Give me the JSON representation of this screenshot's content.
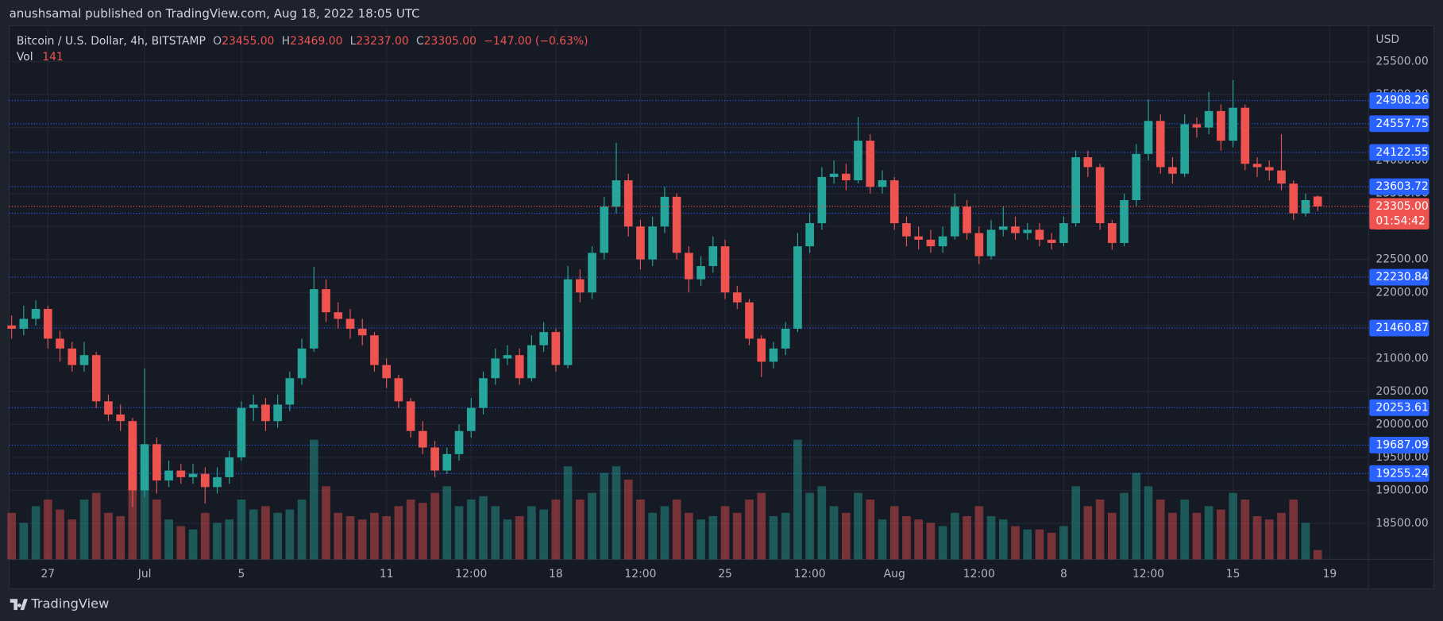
{
  "header": {
    "publisher": "anushsamal published on TradingView.com, Aug 18, 2022 18:05 UTC"
  },
  "footer": {
    "brand": "TradingView"
  },
  "chart_data": {
    "type": "candlestick",
    "title": "Bitcoin / U.S. Dollar, 4h, BITSTAMP",
    "legend": [
      {
        "key": "O",
        "label": "23455.00"
      },
      {
        "key": "H",
        "label": "23469.00"
      },
      {
        "key": "L",
        "label": "23237.00"
      },
      {
        "key": "C",
        "label": "23305.00"
      }
    ],
    "change": "−147.00 (−0.63%)",
    "volume_name": "Vol",
    "currency": "USD",
    "last_price_label": "23305.00",
    "countdown": "01:54:42",
    "up_color": "#26a69a",
    "down_color": "#ef5350",
    "level_color": "#2962ff",
    "grid": true,
    "xlim": [
      -5.6,
      50.6
    ],
    "ylim": [
      17954,
      26015
    ],
    "vlim": [
      0,
      8000
    ],
    "xticks": [
      {
        "value": -4,
        "label": "27"
      },
      {
        "value": 0,
        "label": "Jul"
      },
      {
        "value": 4,
        "label": "5"
      },
      {
        "value": 10,
        "label": "11"
      },
      {
        "value": 13.5,
        "label": "12:00"
      },
      {
        "value": 17,
        "label": "18"
      },
      {
        "value": 20.5,
        "label": "12:00"
      },
      {
        "value": 24,
        "label": "25"
      },
      {
        "value": 27.5,
        "label": "12:00"
      },
      {
        "value": 31,
        "label": "Aug"
      },
      {
        "value": 34.5,
        "label": "12:00"
      },
      {
        "value": 38,
        "label": "8"
      },
      {
        "value": 41.5,
        "label": "12:00"
      },
      {
        "value": 45,
        "label": "15"
      },
      {
        "value": 49,
        "label": "19"
      }
    ],
    "yticks": [
      {
        "value": 18500,
        "label": "18500.00"
      },
      {
        "value": 19000,
        "label": "19000.00"
      },
      {
        "value": 19500,
        "label": "19500.00"
      },
      {
        "value": 20000,
        "label": "20000.00"
      },
      {
        "value": 20500,
        "label": "20500.00"
      },
      {
        "value": 21000,
        "label": "21000.00"
      },
      {
        "value": 21500,
        "label": "21500.00"
      },
      {
        "value": 22000,
        "label": "22000.00"
      },
      {
        "value": 22500,
        "label": "22500.00"
      },
      {
        "value": 23000,
        "label": "23000.00"
      },
      {
        "value": 23500,
        "label": "23500.00"
      },
      {
        "value": 24000,
        "label": "24000.00"
      },
      {
        "value": 24500,
        "label": "24500.00"
      },
      {
        "value": 25000,
        "label": "25000.00"
      },
      {
        "value": 25500,
        "label": "25500.00"
      }
    ],
    "levels": [
      24908.26,
      24557.75,
      24122.55,
      23603.72,
      23199.88,
      22230.84,
      21460.87,
      20253.61,
      19687.09,
      19255.24
    ],
    "x": [
      -5.5,
      -5,
      -4.5,
      -4,
      -3.5,
      -3,
      -2.5,
      -2,
      -1.5,
      -1,
      -0.5,
      0,
      0.5,
      1,
      1.5,
      2,
      2.5,
      3,
      3.5,
      4,
      4.5,
      5,
      5.5,
      6,
      6.5,
      7,
      7.5,
      8,
      8.5,
      9,
      9.5,
      10,
      10.5,
      11,
      11.5,
      12,
      12.5,
      13,
      13.5,
      14,
      14.5,
      15,
      15.5,
      16,
      16.5,
      17,
      17.5,
      18,
      18.5,
      19,
      19.5,
      20,
      20.5,
      21,
      21.5,
      22,
      22.5,
      23,
      23.5,
      24,
      24.5,
      25,
      25.5,
      26,
      26.5,
      27,
      27.5,
      28,
      28.5,
      29,
      29.5,
      30,
      30.5,
      31,
      31.5,
      32,
      32.5,
      33,
      33.5,
      34,
      34.5,
      35,
      35.5,
      36,
      36.5,
      37,
      37.5,
      38,
      38.5,
      39,
      39.5,
      40,
      40.5,
      41,
      41.5,
      42,
      42.5,
      43,
      43.5,
      44,
      44.5,
      45,
      45.5,
      46,
      46.5,
      47,
      47.5,
      48,
      48.5
    ],
    "open": [
      21500,
      21450,
      21600,
      21750,
      21300,
      21150,
      20900,
      21050,
      20350,
      20150,
      20050,
      19000,
      19700,
      19150,
      19300,
      19200,
      19250,
      19050,
      19200,
      19500,
      20250,
      20300,
      20050,
      20300,
      20700,
      21150,
      22050,
      21700,
      21600,
      21450,
      21350,
      20900,
      20700,
      20350,
      19900,
      19650,
      19300,
      19550,
      19900,
      20250,
      20700,
      21000,
      21050,
      20700,
      21200,
      21400,
      20900,
      22200,
      22000,
      22600,
      23300,
      23700,
      23000,
      22500,
      23000,
      23450,
      22600,
      22200,
      22400,
      22700,
      22000,
      21850,
      21300,
      20950,
      21150,
      21450,
      22700,
      23050,
      23750,
      23800,
      23700,
      24300,
      23600,
      23700,
      23050,
      22850,
      22800,
      22700,
      22850,
      23300,
      22900,
      22550,
      22950,
      23000,
      22900,
      22950,
      22800,
      22750,
      23050,
      24050,
      23900,
      23050,
      22750,
      23400,
      24100,
      24600,
      23900,
      23800,
      24550,
      24500,
      24750,
      24300,
      24800,
      23950,
      23900,
      23850,
      23650,
      23200,
      23455
    ],
    "high": [
      21650,
      21800,
      21880,
      21800,
      21420,
      21250,
      21250,
      21100,
      20450,
      20300,
      20100,
      20850,
      19800,
      19450,
      19400,
      19400,
      19350,
      19350,
      19600,
      20350,
      20450,
      20400,
      20450,
      20800,
      21300,
      22390,
      22200,
      21850,
      21750,
      21600,
      21400,
      21000,
      20750,
      20400,
      20050,
      19750,
      19650,
      20000,
      20400,
      20800,
      21150,
      21200,
      21150,
      21350,
      21550,
      21450,
      22400,
      22350,
      22700,
      23450,
      24270,
      23800,
      23100,
      23150,
      23600,
      23500,
      22700,
      22550,
      22850,
      22800,
      22100,
      21900,
      21350,
      21250,
      21550,
      22900,
      23200,
      23900,
      24000,
      23950,
      24660,
      24400,
      23850,
      23750,
      23150,
      23000,
      22950,
      23000,
      23500,
      23400,
      23000,
      23100,
      23300,
      23150,
      23050,
      23050,
      22900,
      23150,
      24150,
      24150,
      23950,
      23100,
      23500,
      24250,
      24930,
      24700,
      24050,
      24700,
      24650,
      25040,
      24850,
      25220,
      24850,
      24050,
      24000,
      24400,
      23700,
      23500,
      23469
    ],
    "low": [
      21300,
      21350,
      21500,
      21150,
      20950,
      20800,
      20800,
      20250,
      20050,
      19900,
      18750,
      18900,
      18950,
      19050,
      19100,
      19100,
      18800,
      18950,
      19100,
      19450,
      20050,
      19900,
      19950,
      20200,
      20600,
      21100,
      21550,
      21450,
      21300,
      21200,
      20800,
      20550,
      20250,
      19800,
      19550,
      19200,
      19250,
      19450,
      19800,
      20150,
      20600,
      20900,
      20600,
      20650,
      21100,
      20800,
      20850,
      21850,
      21900,
      22500,
      23200,
      22850,
      22350,
      22400,
      22900,
      22500,
      22000,
      22100,
      22300,
      21900,
      21750,
      21200,
      20720,
      20850,
      21050,
      21400,
      22600,
      22950,
      23650,
      23550,
      23650,
      23500,
      23500,
      22950,
      22700,
      22650,
      22600,
      22600,
      22800,
      22800,
      22430,
      22500,
      22850,
      22800,
      22800,
      22700,
      22650,
      22700,
      23000,
      23750,
      22950,
      22650,
      22700,
      23300,
      24000,
      23800,
      23650,
      23750,
      24350,
      24400,
      24150,
      24200,
      23850,
      23750,
      23700,
      23550,
      23100,
      23150,
      23237
    ],
    "close": [
      21450,
      21600,
      21750,
      21300,
      21150,
      20900,
      21050,
      20350,
      20150,
      20050,
      19000,
      19700,
      19150,
      19300,
      19200,
      19250,
      19050,
      19200,
      19500,
      20250,
      20300,
      20050,
      20300,
      20700,
      21150,
      22050,
      21700,
      21600,
      21450,
      21350,
      20900,
      20700,
      20350,
      19900,
      19650,
      19300,
      19550,
      19900,
      20250,
      20700,
      21000,
      21050,
      20700,
      21200,
      21400,
      20900,
      22200,
      22000,
      22600,
      23300,
      23700,
      23000,
      22500,
      23000,
      23450,
      22600,
      22200,
      22400,
      22700,
      22000,
      21850,
      21300,
      20950,
      21150,
      21450,
      22700,
      23050,
      23750,
      23800,
      23700,
      24300,
      23600,
      23700,
      23050,
      22850,
      22800,
      22700,
      22850,
      23300,
      22900,
      22550,
      22950,
      23000,
      22900,
      22950,
      22800,
      22750,
      23050,
      24050,
      23900,
      23050,
      22750,
      23400,
      24100,
      24600,
      23900,
      23800,
      24550,
      24500,
      24750,
      24300,
      24800,
      23950,
      23900,
      23850,
      23650,
      23200,
      23400,
      23305
    ],
    "volume": [
      700,
      550,
      800,
      900,
      750,
      600,
      900,
      1000,
      700,
      650,
      1800,
      1600,
      900,
      600,
      500,
      450,
      700,
      550,
      600,
      900,
      750,
      800,
      700,
      750,
      900,
      1800,
      1100,
      700,
      650,
      600,
      700,
      650,
      800,
      900,
      850,
      1000,
      1100,
      800,
      900,
      950,
      800,
      600,
      650,
      800,
      750,
      900,
      1400,
      900,
      1000,
      1300,
      1400,
      1200,
      900,
      700,
      800,
      900,
      700,
      600,
      650,
      800,
      700,
      900,
      1000,
      650,
      700,
      1800,
      1000,
      1100,
      800,
      700,
      1000,
      900,
      600,
      800,
      650,
      600,
      550,
      500,
      700,
      650,
      800,
      650,
      600,
      500,
      450,
      450,
      400,
      500,
      1100,
      800,
      900,
      700,
      1000,
      1300,
      1100,
      900,
      700,
      900,
      700,
      800,
      750,
      1000,
      900,
      650,
      600,
      700,
      900,
      550,
      141
    ]
  }
}
